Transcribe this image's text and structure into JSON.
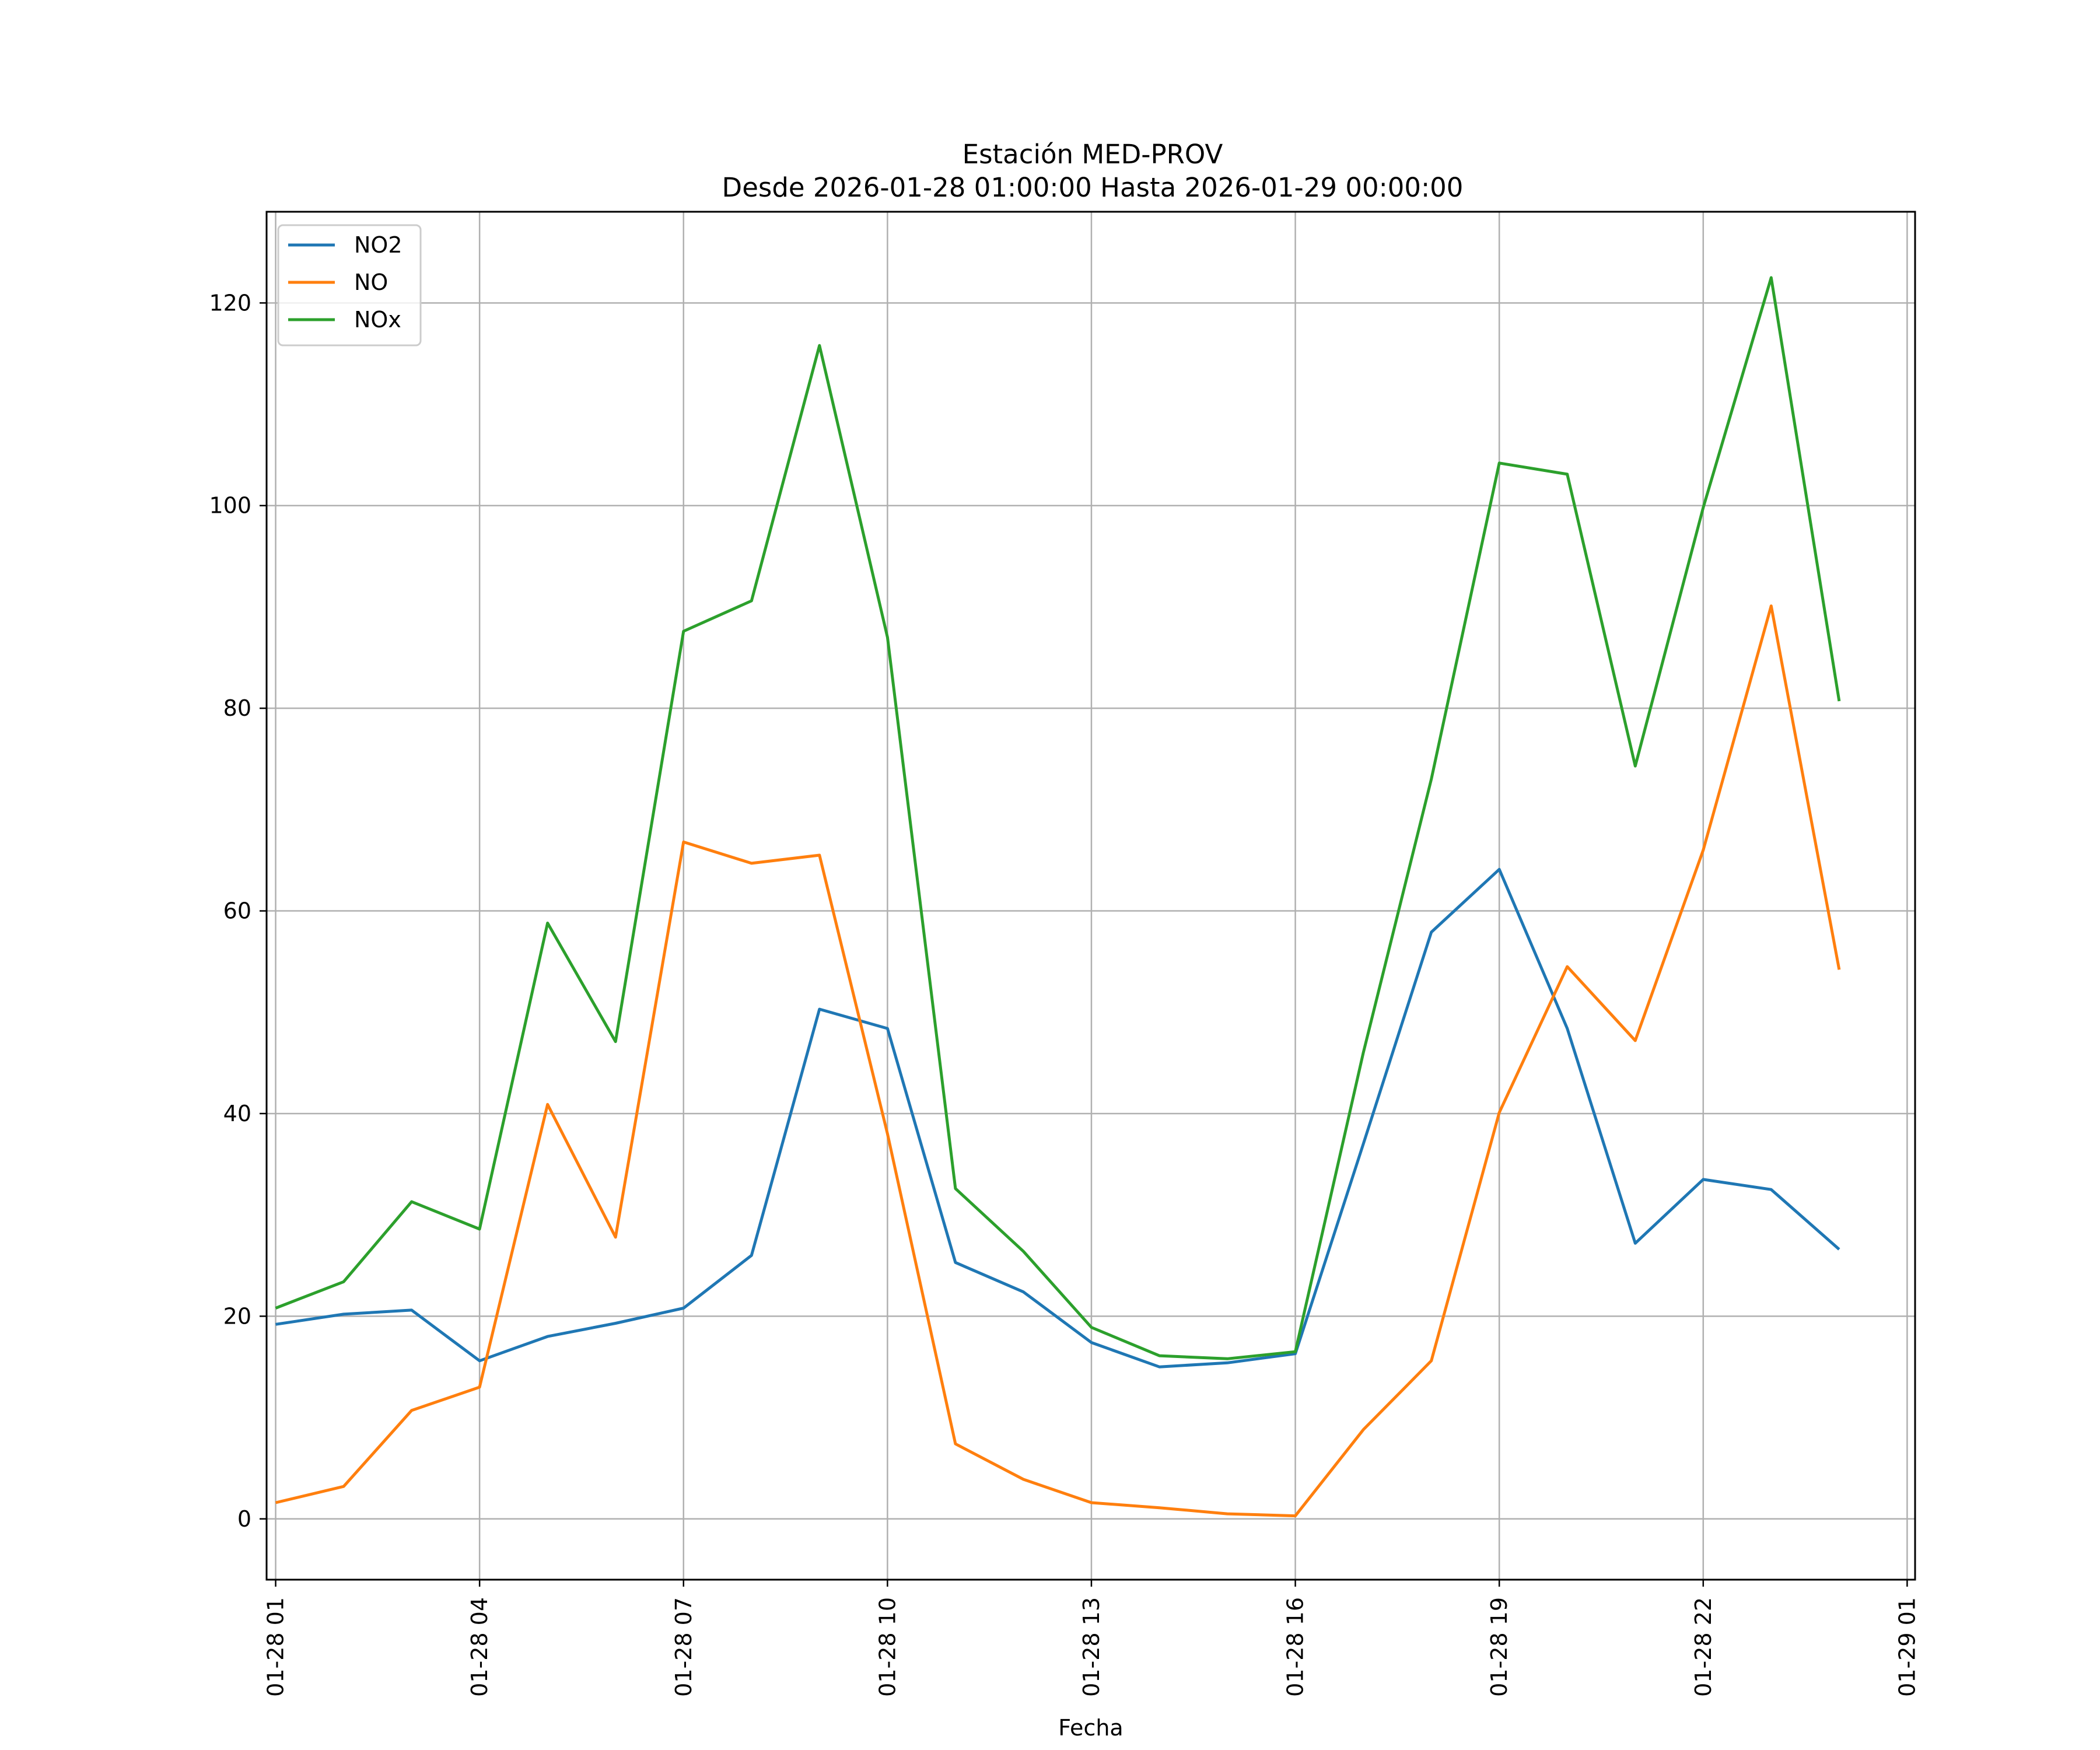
{
  "chart_data": {
    "type": "line",
    "title_line1": "Estación MED-PROV",
    "title_line2": "Desde 2026-01-28 01:00:00 Hasta 2026-01-29 00:00:00",
    "xlabel": "Fecha",
    "ylabel": "",
    "x": [
      "01-28 01",
      "01-28 02",
      "01-28 03",
      "01-28 04",
      "01-28 05",
      "01-28 06",
      "01-28 07",
      "01-28 08",
      "01-28 09",
      "01-28 10",
      "01-28 11",
      "01-28 12",
      "01-28 13",
      "01-28 14",
      "01-28 15",
      "01-28 16",
      "01-28 17",
      "01-28 18",
      "01-28 19",
      "01-28 20",
      "01-28 21",
      "01-28 22",
      "01-28 23",
      "01-29 00"
    ],
    "x_ticks": [
      "01-28 01",
      "01-28 04",
      "01-28 07",
      "01-28 10",
      "01-28 13",
      "01-28 16",
      "01-28 19",
      "01-28 22",
      "01-29 01"
    ],
    "y_ticks": [
      0,
      20,
      40,
      60,
      80,
      100,
      120
    ],
    "ylim": [
      -6,
      129
    ],
    "xlim": [
      "01-28 00:52",
      "01-29 01:07"
    ],
    "grid": true,
    "legend_position": "top-left",
    "series": [
      {
        "name": "NO2",
        "color": "#1f77b4",
        "values": [
          19.2,
          20.2,
          20.6,
          15.6,
          18.0,
          19.3,
          20.8,
          26.0,
          50.3,
          48.4,
          25.3,
          22.4,
          17.4,
          15.0,
          15.4,
          16.3,
          37.0,
          57.9,
          64.1,
          48.4,
          27.2,
          33.5,
          32.5,
          26.6
        ]
      },
      {
        "name": "NO",
        "color": "#ff7f0e",
        "values": [
          1.6,
          3.2,
          10.7,
          13.0,
          40.9,
          27.8,
          66.8,
          64.7,
          65.5,
          38.0,
          7.4,
          3.9,
          1.6,
          1.1,
          0.5,
          0.3,
          8.8,
          15.6,
          40.1,
          54.5,
          47.2,
          66.0,
          90.1,
          54.2
        ]
      },
      {
        "name": "NOx",
        "color": "#2ca02c",
        "values": [
          20.8,
          23.4,
          31.3,
          28.6,
          58.8,
          47.1,
          87.6,
          90.6,
          115.8,
          87.0,
          32.6,
          26.4,
          18.9,
          16.1,
          15.8,
          16.5,
          46.0,
          73.0,
          104.2,
          103.1,
          74.3,
          99.8,
          122.5,
          80.7
        ]
      }
    ]
  }
}
